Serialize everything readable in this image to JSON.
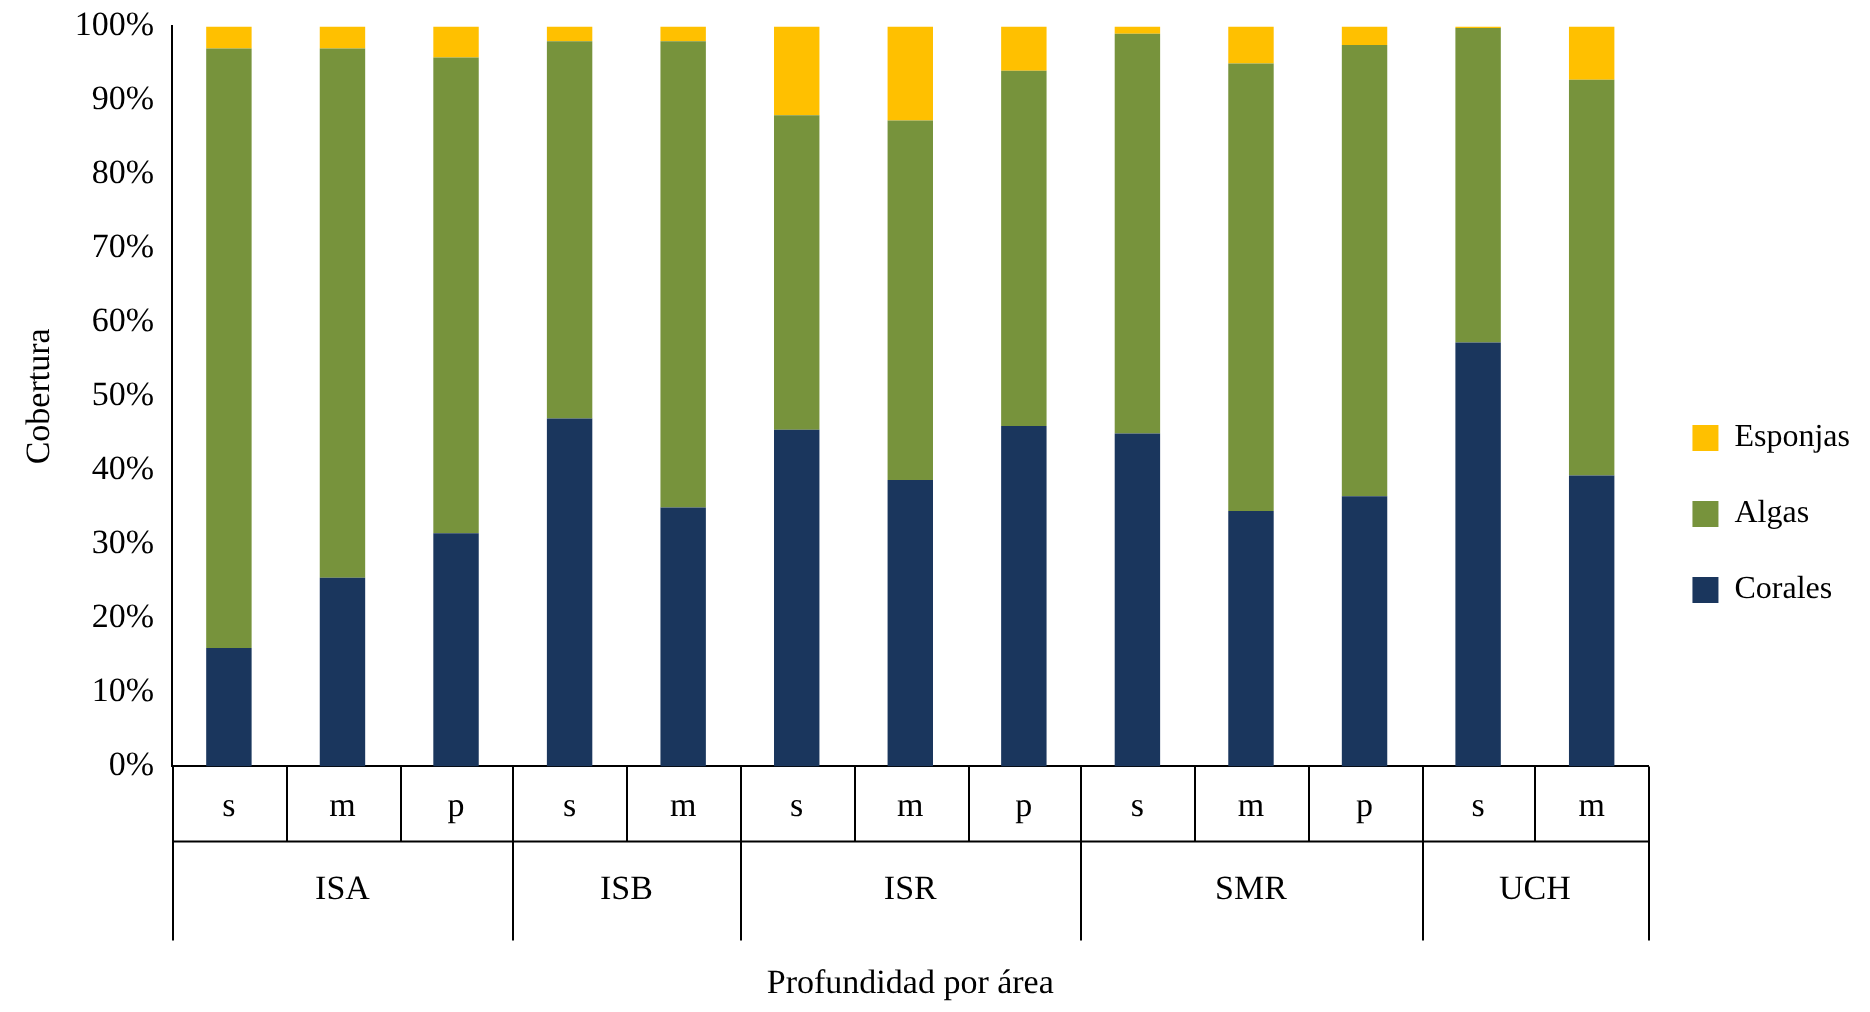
{
  "chart_data": {
    "type": "bar",
    "stacked": true,
    "xlabel": "Profundidad por área",
    "ylabel": "Cobertura",
    "categories": [
      "s",
      "m",
      "p",
      "s",
      "m",
      "s",
      "m",
      "p",
      "s",
      "m",
      "p",
      "s",
      "m"
    ],
    "annotations": [
      "ISA",
      "ISB",
      "ISR",
      "SMR",
      "UCH"
    ],
    "series": [
      {
        "name": "Corales",
        "color": "#1a365d",
        "values": [
          16,
          25.5,
          31.5,
          47,
          35,
          45.5,
          38.7,
          46,
          45,
          34.5,
          36.5,
          57.3,
          39.3
        ]
      },
      {
        "name": "Algas",
        "color": "#77933c",
        "values": [
          81,
          71.5,
          64.3,
          51,
          63,
          42.5,
          48.6,
          48,
          54,
          60.5,
          61,
          42.5,
          53.5
        ]
      },
      {
        "name": "Esponjas",
        "color": "#ffc000",
        "values": [
          3,
          3,
          4.2,
          2,
          2,
          12,
          12.7,
          6,
          1,
          5,
          2.5,
          0.2,
          7.2
        ]
      }
    ],
    "ylim": [
      0,
      100
    ],
    "yticks": [
      {
        "value": 0,
        "label": "0%"
      },
      {
        "value": 10,
        "label": "10%"
      },
      {
        "value": 20,
        "label": "20%"
      },
      {
        "value": 30,
        "label": "30%"
      },
      {
        "value": 40,
        "label": "40%"
      },
      {
        "value": 50,
        "label": "50%"
      },
      {
        "value": 60,
        "label": "60%"
      },
      {
        "value": 70,
        "label": "70%"
      },
      {
        "value": 80,
        "label": "80%"
      },
      {
        "value": 90,
        "label": "90%"
      },
      {
        "value": 100,
        "label": "100%"
      }
    ],
    "grid": false,
    "legend": "right"
  }
}
